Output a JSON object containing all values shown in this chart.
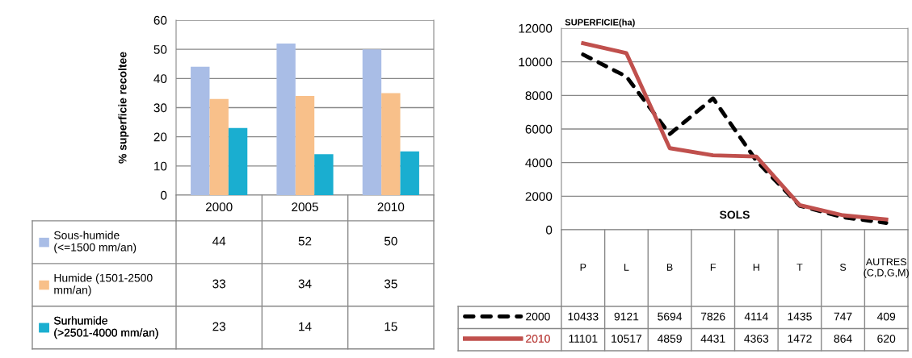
{
  "chart_data": [
    {
      "type": "bar",
      "ylabel": "% superficie recoltee",
      "categories": [
        "2000",
        "2005",
        "2010"
      ],
      "series": [
        {
          "name": "Sous-humide (<=1500 mm/an)",
          "color": "#a9bde6",
          "values": [
            44,
            52,
            50
          ]
        },
        {
          "name": "Humide (1501-2500 mm/an)",
          "color": "#f8c08a",
          "values": [
            33,
            34,
            35
          ]
        },
        {
          "name": "Surhumide (>2501-4000 mm/an)",
          "color": "#1aaed0",
          "values": [
            23,
            14,
            15
          ]
        }
      ],
      "ylim": [
        0,
        60
      ],
      "yticks": [
        0,
        10,
        20,
        30,
        40,
        50,
        60
      ],
      "grid": "y",
      "legend": "bottom",
      "data_labels": true
    },
    {
      "type": "line",
      "ylabel": "SUPERFICIE(ha)",
      "xlabel": "SOLS",
      "categories": [
        "P",
        "L",
        "B",
        "F",
        "H",
        "T",
        "S",
        "AUTRES (C,D,G,M)"
      ],
      "series": [
        {
          "name": "2000",
          "color": "#000000",
          "line_style": "dashed",
          "values": [
            10433,
            9121,
            5694,
            7826,
            4114,
            1435,
            747,
            409
          ]
        },
        {
          "name": "2010",
          "color": "#c0504d",
          "line_style": "solid",
          "values": [
            11101,
            10517,
            4859,
            4431,
            4363,
            1472,
            864,
            620
          ]
        }
      ],
      "ylim": [
        0,
        12000
      ],
      "yticks": [
        0,
        2000,
        4000,
        6000,
        8000,
        10000,
        12000
      ],
      "grid": "y",
      "legend": "bottom",
      "data_labels": true,
      "marker": "none"
    }
  ]
}
